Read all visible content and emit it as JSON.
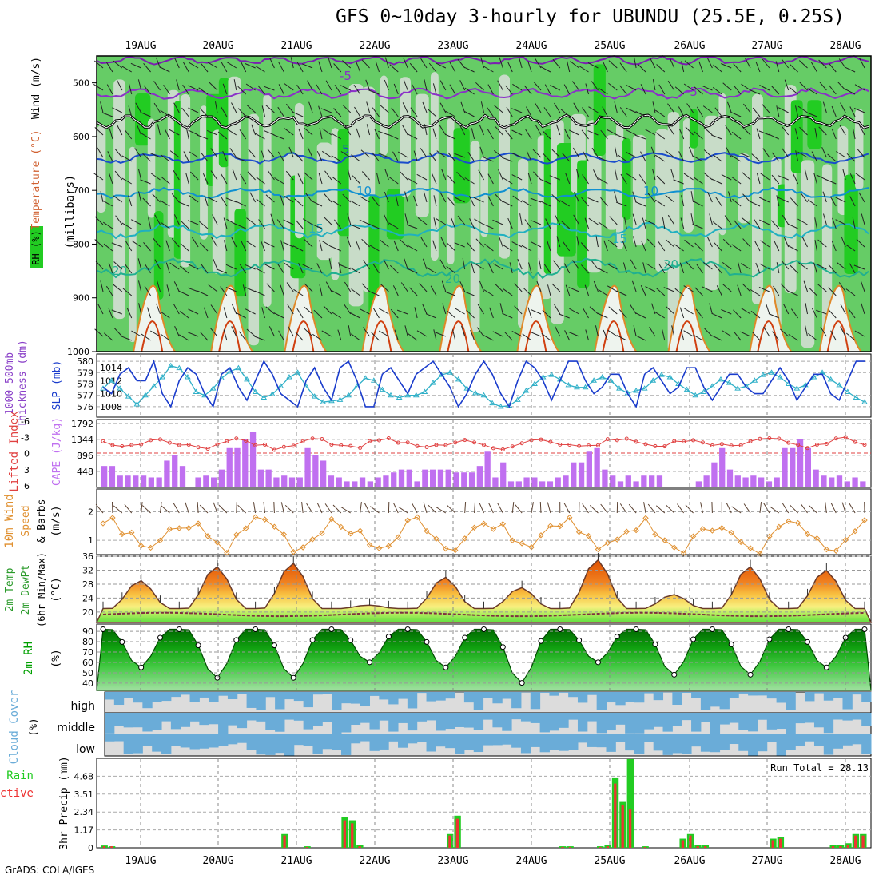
{
  "title": "GFS 0~10day 3-hourly for UBUNDU (25.5E, 0.25S)",
  "credit": "GrADS: COLA/IGES",
  "dates": [
    "19AUG",
    "20AUG",
    "21AUG",
    "22AUG",
    "23AUG",
    "24AUG",
    "25AUG",
    "26AUG",
    "27AUG",
    "28AUG"
  ],
  "colors": {
    "rh_green": "#22cc22",
    "rh_mid": "#66cc66",
    "rh_light": "#c8dcc8",
    "temp": "#e06a10",
    "slp": "#1a3ccc",
    "thick": "#30b0c8",
    "li": "#e04040",
    "cape": "#c070f0",
    "wind10": "#e09030",
    "dew": "#803040",
    "rh2m": "#00a000",
    "cloud": "#6aacd8",
    "rain": "#22cc22",
    "conv": "#ee3333"
  },
  "chart_data": [
    {
      "type": "heatmap",
      "name": "upper",
      "ylabel_parts": [
        "RH (%)",
        "Temperature",
        "(°C)",
        "Wind (m/s)"
      ],
      "ylabel2": "(millibars)",
      "yticks": [
        500,
        600,
        700,
        800,
        900,
        1000
      ],
      "ylim": [
        450,
        1000
      ],
      "contour_labels": [
        "-5",
        "-5",
        "5",
        "10",
        "10",
        "15",
        "15",
        "20",
        "20",
        "20"
      ]
    },
    {
      "type": "line",
      "name": "thickness_slp",
      "ylabel_left": [
        "1000-500mb",
        "Thickness (dm)"
      ],
      "ylabel_right": "SLP (mb)",
      "yticks_left": [
        576,
        577,
        578,
        579,
        580
      ],
      "yticks_right": [
        1008,
        1010,
        1012,
        1014
      ],
      "series": [
        {
          "name": "SLP",
          "values": [
            1011,
            1010,
            1013,
            1014,
            1012,
            1012,
            1015,
            1010,
            1008,
            1012,
            1014,
            1013,
            1010,
            1008,
            1013,
            1014,
            1011,
            1009,
            1012,
            1015,
            1013,
            1010,
            1009,
            1008,
            1012,
            1014,
            1011,
            1009,
            1014,
            1015,
            1012,
            1008,
            1008,
            1013,
            1014,
            1012,
            1010,
            1013,
            1014,
            1015,
            1013,
            1011,
            1008,
            1010,
            1013,
            1015,
            1013,
            1010,
            1008,
            1012,
            1015,
            1014,
            1012,
            1009,
            1012,
            1015,
            1015,
            1012,
            1010,
            1011,
            1013,
            1013,
            1010,
            1008,
            1013,
            1014,
            1012,
            1010,
            1011,
            1014,
            1014,
            1011,
            1009,
            1011,
            1013,
            1013,
            1011,
            1010,
            1010,
            1012,
            1014,
            1012,
            1009,
            1011,
            1013,
            1013,
            1010,
            1009,
            1012,
            1015,
            1015
          ]
        },
        {
          "name": "Thickness",
          "values": [
            577.6,
            578.3,
            577.6,
            576.9,
            576.2,
            577.0,
            577.8,
            578.6,
            579.6,
            579.4,
            578.6,
            577.3,
            577.0,
            577.6,
            578.5,
            579.1,
            579.4,
            578.4,
            577.3,
            576.8,
            577.1,
            577.8,
            578.6,
            579.0,
            577.8,
            576.9,
            576.4,
            576.5,
            576.6,
            577.0,
            577.8,
            578.5,
            578.3,
            577.5,
            577.0,
            576.8,
            577.0,
            577.0,
            577.3,
            578.1,
            578.8,
            579.0,
            578.4,
            577.6,
            577.2,
            577.0,
            576.3,
            576.0,
            576.1,
            576.6,
            577.4,
            578.0,
            578.6,
            578.8,
            578.4,
            577.9,
            577.7,
            577.7,
            578.3,
            578.6,
            578.3,
            577.6,
            577.2,
            577.4,
            577.6,
            578.3,
            578.8,
            578.6,
            578.0,
            577.5,
            577.0,
            577.3,
            577.8,
            578.4,
            578.1,
            577.6,
            577.8,
            578.3,
            578.8,
            579.0,
            578.6,
            578.0,
            577.6,
            577.9,
            578.6,
            579.0,
            578.4,
            577.9,
            577.3,
            576.8,
            576.4
          ]
        }
      ]
    },
    {
      "type": "bar",
      "name": "li_cape",
      "ylabel_left": "Lifted Index",
      "ylabel_right": "CAPE (J/kg)",
      "yticks_left": [
        "-6",
        "-3",
        "0",
        "3",
        "6"
      ],
      "yticks_right": [
        448,
        896,
        1344,
        1792
      ],
      "cape": [
        600,
        600,
        330,
        330,
        330,
        330,
        280,
        280,
        750,
        900,
        600,
        0,
        280,
        330,
        280,
        500,
        1100,
        1100,
        1344,
        1550,
        500,
        500,
        280,
        330,
        280,
        280,
        1100,
        900,
        750,
        330,
        280,
        170,
        170,
        280,
        170,
        280,
        330,
        420,
        500,
        500,
        170,
        500,
        500,
        500,
        500,
        420,
        420,
        420,
        600,
        1000,
        280,
        700,
        170,
        170,
        280,
        280,
        170,
        170,
        280,
        330,
        700,
        700,
        1000,
        1100,
        500,
        330,
        170,
        330,
        170,
        330,
        330,
        330,
        0,
        0,
        0,
        0,
        170,
        330,
        700,
        1100,
        500,
        330,
        280,
        330,
        280,
        170,
        280,
        1100,
        1100,
        1344,
        1100,
        500,
        330,
        280,
        330,
        170,
        280,
        170
      ]
    },
    {
      "type": "line",
      "name": "wind10m",
      "ylabel": [
        "10m Wind",
        "Speed",
        "& Barbs",
        "(m/s)"
      ],
      "yticks": [
        1,
        2
      ],
      "ylim": [
        0.5,
        2.8
      ]
    },
    {
      "type": "area",
      "name": "temp2m",
      "ylabel": [
        "2m Temp",
        "2m DewPt",
        "(6hr Min/Max)",
        "(°C)"
      ],
      "yticks": [
        20,
        24,
        28,
        32,
        36
      ],
      "ylim": [
        17,
        36
      ]
    },
    {
      "type": "area",
      "name": "rh2m",
      "ylabel": [
        "2m RH",
        "(%)"
      ],
      "yticks": [
        40,
        50,
        60,
        70,
        80,
        90
      ],
      "ylim": [
        33,
        97
      ]
    },
    {
      "type": "bar",
      "name": "cloud",
      "ylabel": [
        "Cloud Cover",
        "(%)"
      ],
      "levels": [
        "high",
        "middle",
        "low"
      ]
    },
    {
      "type": "bar",
      "name": "precip",
      "ylabel_left": [
        "Total / Rain",
        "Convective"
      ],
      "ylabel_right": "3hr Precip (mm)",
      "yticks": [
        "0",
        "1.17",
        "2.34",
        "3.51",
        "4.68"
      ],
      "ylim": [
        0,
        5.85
      ],
      "run_total": "Run Total = 28.13",
      "series": [
        {
          "name": "Total / Rain",
          "values": [
            0.15,
            0.1,
            0,
            0,
            0,
            0,
            0,
            0,
            0,
            0,
            0,
            0,
            0,
            0,
            0,
            0,
            0,
            0,
            0,
            0,
            0,
            0,
            0,
            0,
            0.9,
            0,
            0,
            0.1,
            0,
            0,
            0,
            0,
            2.0,
            1.8,
            0.2,
            0,
            0,
            0,
            0,
            0,
            0,
            0,
            0,
            0,
            0,
            0,
            0.9,
            2.1,
            0,
            0,
            0,
            0,
            0,
            0,
            0,
            0,
            0,
            0,
            0,
            0,
            0,
            0.1,
            0.1,
            0,
            0,
            0,
            0.1,
            0.2,
            4.6,
            3.0,
            5.8,
            0,
            0.1,
            0,
            0,
            0,
            0,
            0.6,
            0.9,
            0.2,
            0.2,
            0,
            0,
            0,
            0,
            0,
            0,
            0,
            0,
            0.6,
            0.7,
            0,
            0,
            0,
            0,
            0,
            0,
            0.2,
            0.2,
            0.3,
            0.9,
            0.9
          ]
        },
        {
          "name": "Convective",
          "values": [
            0.1,
            0.1,
            0,
            0,
            0,
            0,
            0,
            0,
            0,
            0,
            0,
            0,
            0,
            0,
            0,
            0,
            0,
            0,
            0,
            0,
            0,
            0,
            0,
            0,
            0.8,
            0,
            0,
            0.05,
            0,
            0,
            0,
            0,
            1.8,
            1.6,
            0.1,
            0,
            0,
            0,
            0,
            0,
            0,
            0,
            0,
            0,
            0,
            0,
            0.8,
            1.9,
            0,
            0,
            0,
            0,
            0,
            0,
            0,
            0,
            0,
            0,
            0,
            0,
            0,
            0.05,
            0.05,
            0,
            0,
            0,
            0.05,
            0.1,
            4.2,
            2.8,
            2.5,
            0,
            0.05,
            0,
            0,
            0,
            0,
            0.5,
            0.8,
            0.1,
            0.1,
            0,
            0,
            0,
            0,
            0,
            0,
            0,
            0,
            0.5,
            0.6,
            0,
            0,
            0,
            0,
            0,
            0,
            0.1,
            0.1,
            0.2,
            0.8,
            0.8
          ]
        }
      ]
    }
  ]
}
